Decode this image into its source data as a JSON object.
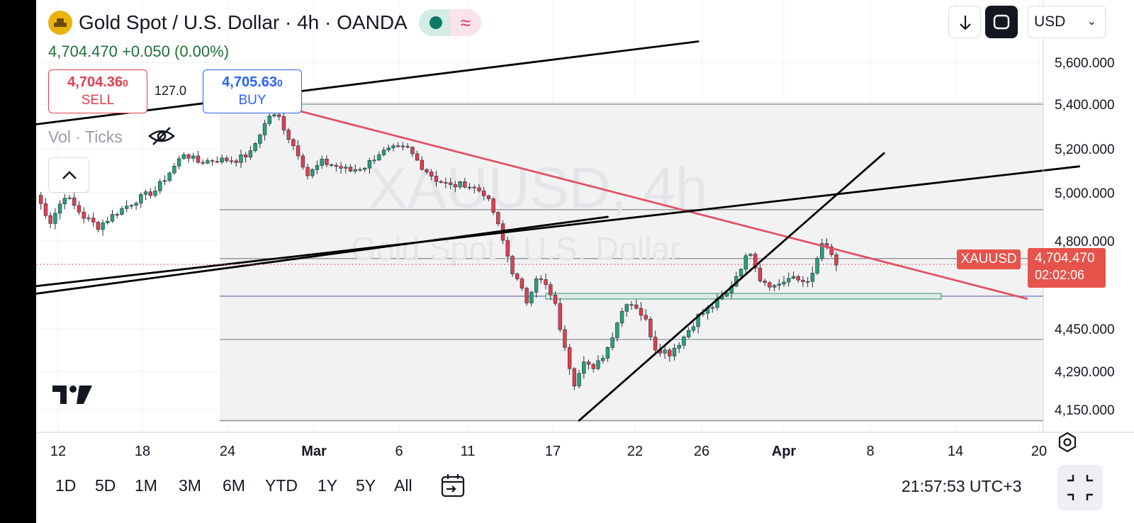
{
  "header": {
    "title": "Gold Spot / U.S. Dollar · 4h · OANDA",
    "price_line": "4,704.470  +0.050 (0.00%)",
    "status_icon": "market-open-dot",
    "wave_icon": "≈"
  },
  "trade": {
    "sell_price": "4,704.36",
    "sell_price_sup": "0",
    "sell_label": "SELL",
    "spread": "127.0",
    "buy_price": "4,705.63",
    "buy_price_sup": "0",
    "buy_label": "BUY"
  },
  "indicator": {
    "label": "Vol · Ticks"
  },
  "toolbar": {
    "currency": "USD"
  },
  "price_tag": {
    "symbol": "XAUUSD",
    "price": "4,704.470",
    "countdown": "02:02:06"
  },
  "time_ranges": [
    "1D",
    "5D",
    "1M",
    "3M",
    "6M",
    "YTD",
    "1Y",
    "5Y",
    "All"
  ],
  "clock": "21:57:53 UTC+3",
  "colors": {
    "up": "#26a17b",
    "down": "#e23e50",
    "trend_red": "#e05466",
    "trend_black": "#000000",
    "price_tag": "#e5534b"
  },
  "chart_data": {
    "type": "candlestick",
    "symbol_watermark": "XAUUSD, 4h",
    "subtitle_watermark": "Gold Spot / U.S. Dollar",
    "y_ticks": [
      5600,
      5400,
      5200,
      5000,
      4800,
      4450,
      4290,
      4150
    ],
    "y_tick_labels": [
      "5,600.000",
      "5,400.000",
      "5,200.000",
      "5,000.000",
      "4,800.000",
      "4,450.000",
      "4,290.000",
      "4,150.000"
    ],
    "x_ticks": [
      "12",
      "18",
      "24",
      "Mar",
      "6",
      "11",
      "17",
      "22",
      "26",
      "Apr",
      "8",
      "14",
      "20"
    ],
    "last_price": 4704.47,
    "horizontal_levels": [
      5400,
      4930,
      4730,
      4580,
      4410,
      4110
    ],
    "price_path": [
      [
        0,
        4990
      ],
      [
        3,
        4880
      ],
      [
        6,
        4990
      ],
      [
        10,
        4900
      ],
      [
        13,
        4860
      ],
      [
        17,
        4920
      ],
      [
        21,
        4970
      ],
      [
        25,
        5010
      ],
      [
        29,
        5120
      ],
      [
        31,
        5180
      ],
      [
        34,
        5140
      ],
      [
        38,
        5150
      ],
      [
        42,
        5150
      ],
      [
        45,
        5180
      ],
      [
        47,
        5270
      ],
      [
        49,
        5350
      ],
      [
        51,
        5340
      ],
      [
        53,
        5250
      ],
      [
        55,
        5180
      ],
      [
        57,
        5080
      ],
      [
        60,
        5140
      ],
      [
        63,
        5120
      ],
      [
        66,
        5100
      ],
      [
        69,
        5120
      ],
      [
        72,
        5180
      ],
      [
        75,
        5200
      ],
      [
        78,
        5200
      ],
      [
        81,
        5120
      ],
      [
        84,
        5060
      ],
      [
        87,
        5030
      ],
      [
        90,
        5040
      ],
      [
        94,
        5000
      ],
      [
        96,
        4920
      ],
      [
        98,
        4800
      ],
      [
        100,
        4680
      ],
      [
        103,
        4560
      ],
      [
        105,
        4660
      ],
      [
        107,
        4620
      ],
      [
        109,
        4540
      ],
      [
        111,
        4370
      ],
      [
        113,
        4250
      ],
      [
        115,
        4340
      ],
      [
        117,
        4290
      ],
      [
        120,
        4380
      ],
      [
        122,
        4480
      ],
      [
        124,
        4560
      ],
      [
        126,
        4540
      ],
      [
        128,
        4480
      ],
      [
        130,
        4380
      ],
      [
        133,
        4360
      ],
      [
        136,
        4420
      ],
      [
        139,
        4500
      ],
      [
        142,
        4540
      ],
      [
        145,
        4590
      ],
      [
        148,
        4700
      ],
      [
        150,
        4760
      ],
      [
        152,
        4650
      ],
      [
        155,
        4620
      ],
      [
        158,
        4650
      ],
      [
        161,
        4640
      ],
      [
        163,
        4660
      ],
      [
        165,
        4790
      ],
      [
        167,
        4740
      ],
      [
        168,
        4704
      ]
    ],
    "trendlines": [
      {
        "name": "red-resistance",
        "from": [
          48,
          5410
        ],
        "to": [
          208,
          4570
        ]
      },
      {
        "name": "black-upper",
        "from": [
          0,
          5310
        ],
        "to": [
          139,
          5700
        ]
      },
      {
        "name": "black-rising-support",
        "from": [
          114,
          4110
        ],
        "to": [
          178,
          5180
        ]
      },
      {
        "name": "black-mid-1",
        "from": [
          0,
          4620
        ],
        "to": [
          219,
          5120
        ]
      },
      {
        "name": "black-mid-2",
        "from": [
          0,
          4590
        ],
        "to": [
          120,
          4900
        ]
      }
    ],
    "support_zone": [
      4555,
      4575
    ]
  }
}
